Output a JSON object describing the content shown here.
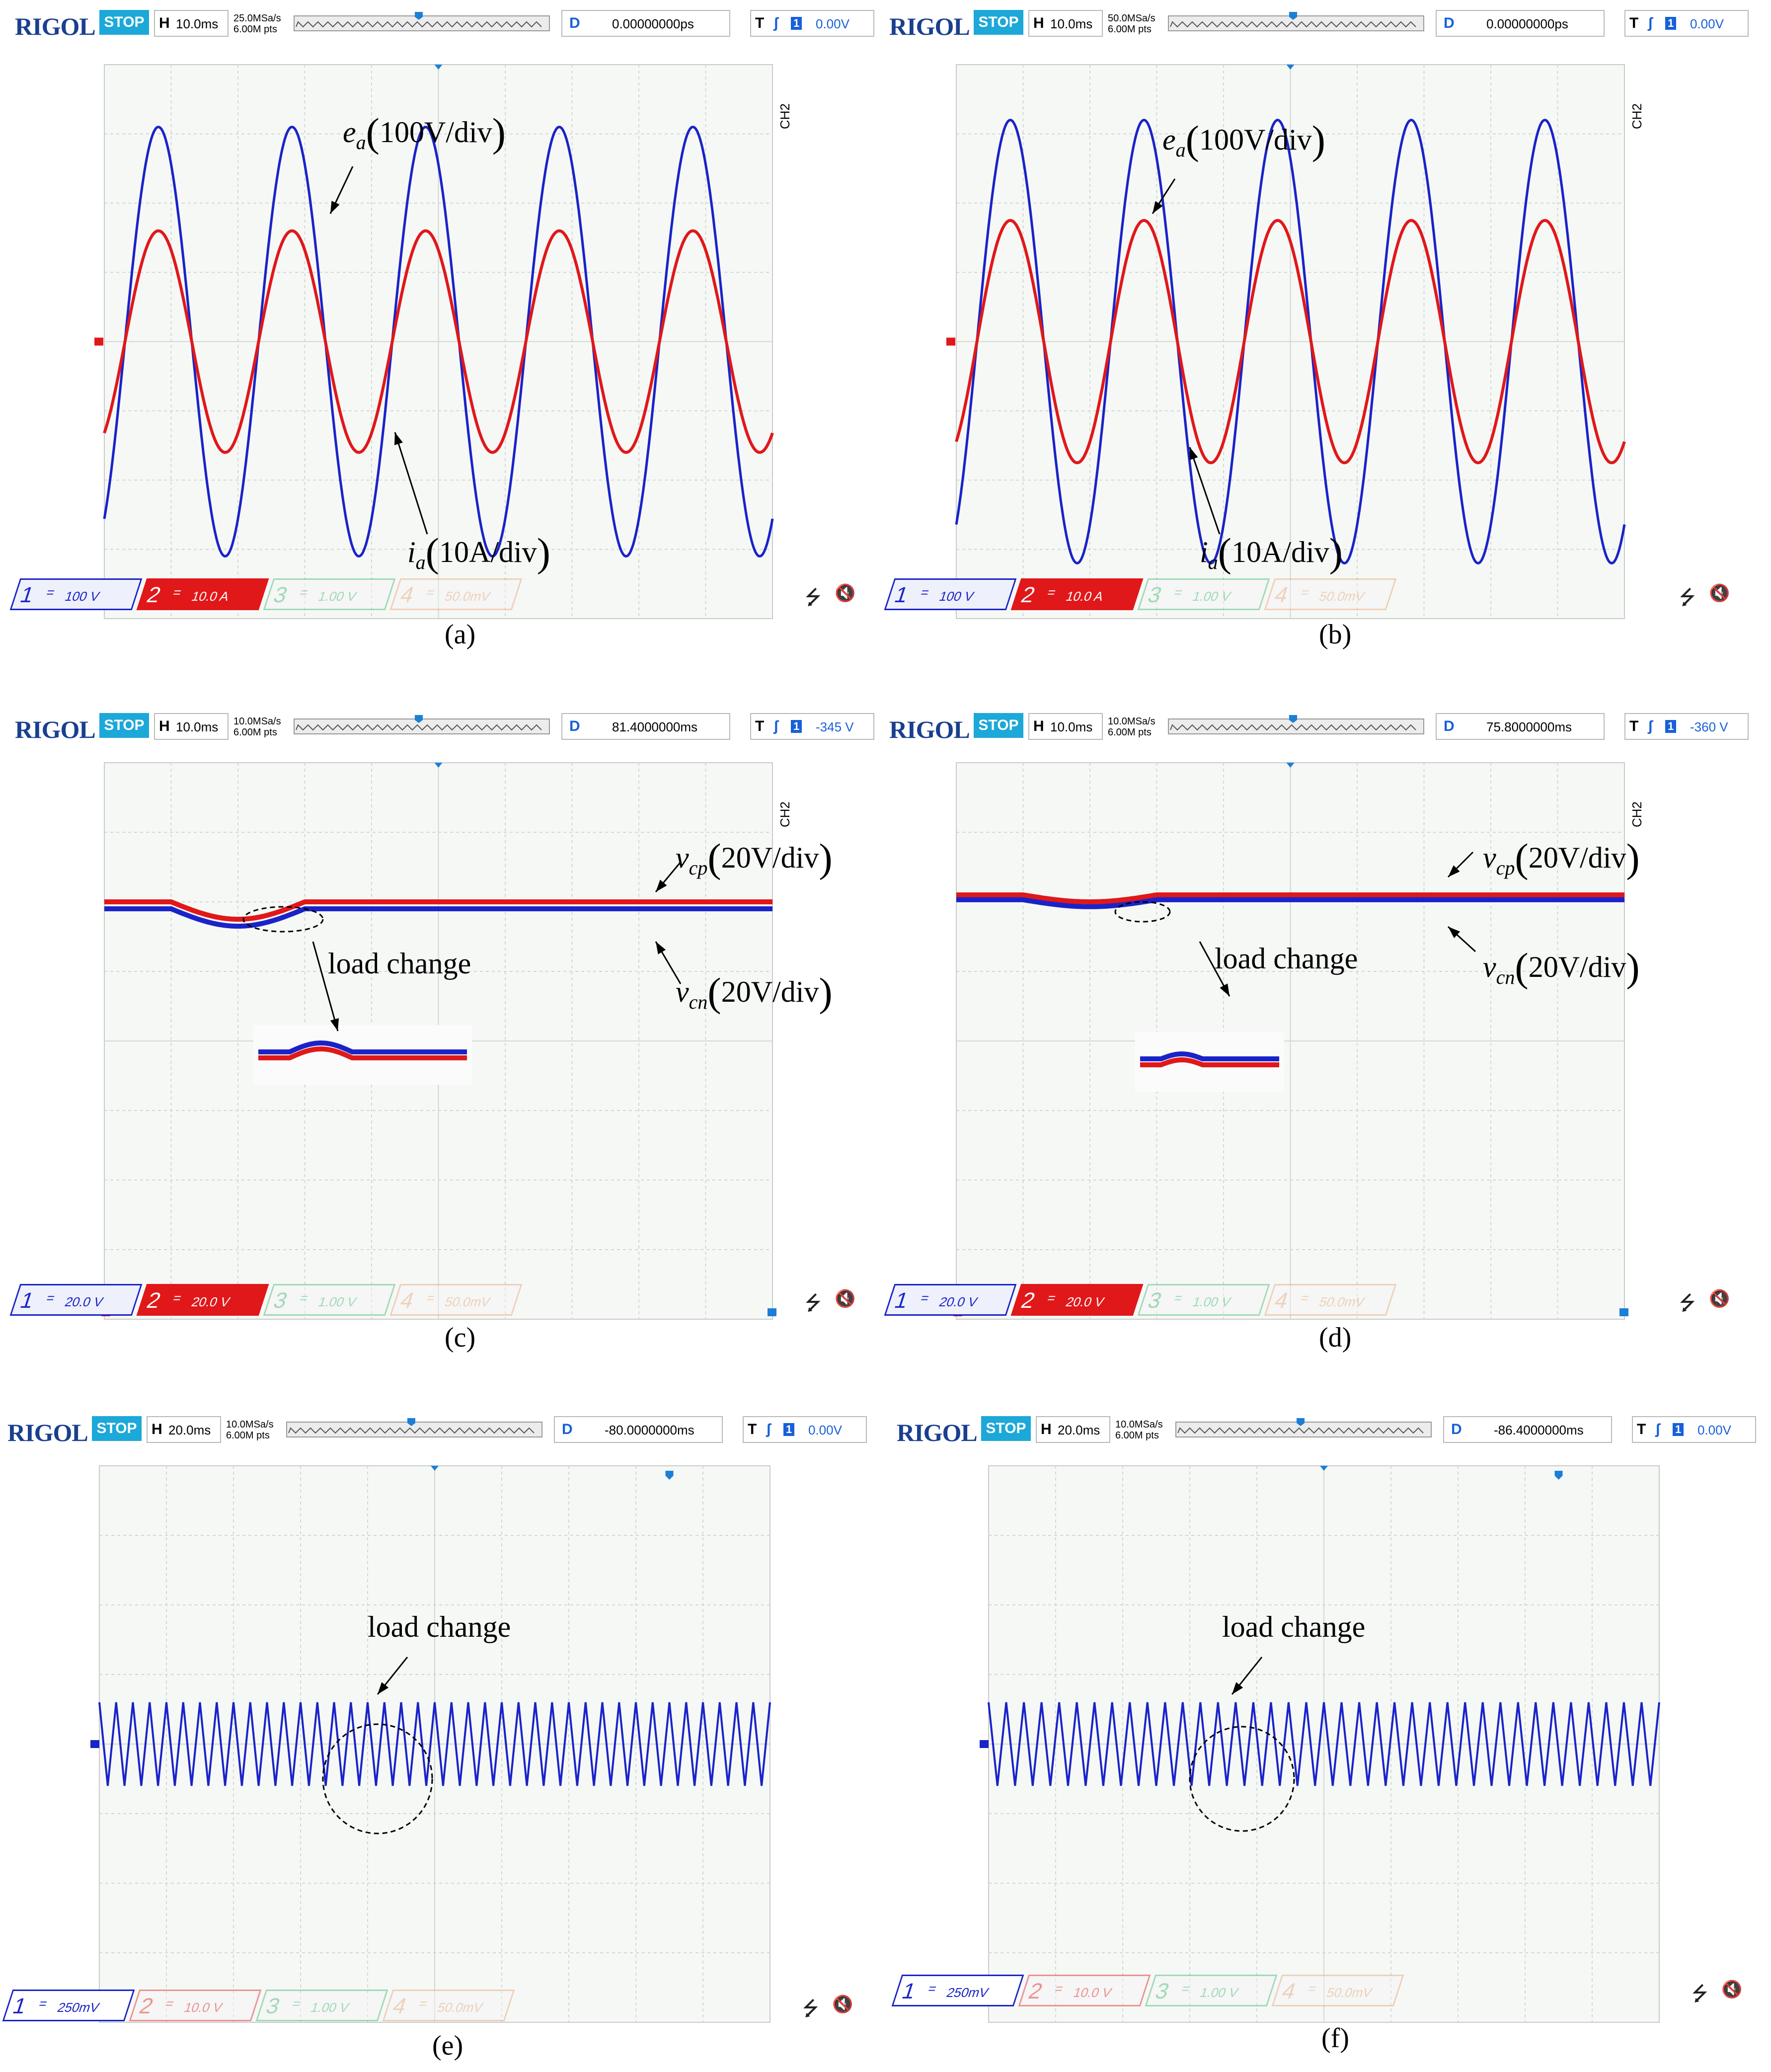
{
  "colors": {
    "blue": "#1a23c8",
    "red": "#e0181a",
    "brand": "#1a3f8f",
    "stop": "#1ca8d8",
    "ch3": "#3bb56b",
    "ch4": "#e6a070"
  },
  "panels": [
    {
      "id": "a",
      "caption": "(a)",
      "brand": "RIGOL",
      "stop": "STOP",
      "h_label": "H",
      "timebase": "10.0ms",
      "rate1": "25.0MSa/s",
      "rate2": "6.00M pts",
      "d_label": "D",
      "delay": "0.00000000ps",
      "trig_label": "T",
      "trig_ch": "1",
      "trig_level": "0.00V",
      "ch_side": "CH2",
      "channels": [
        {
          "num": "1",
          "scale": "100 V"
        },
        {
          "num": "2",
          "scale": "10.0 A"
        },
        {
          "num": "3",
          "scale": "1.00 V"
        },
        {
          "num": "4",
          "scale": "50.0mV"
        }
      ],
      "annotations": [
        {
          "sym": "e",
          "sub": "a",
          "unit": "100V/div"
        },
        {
          "sym": "i",
          "sub": "a",
          "unit": "10A/div"
        }
      ],
      "chart_data": {
        "type": "line",
        "x_unit": "ms",
        "x_range": [
          0,
          100
        ],
        "y_unit": "div",
        "y_range": [
          -4,
          4
        ],
        "grid": true,
        "series": [
          {
            "name": "e_a",
            "amplitude_div": 3.1,
            "frequency_hz": 50,
            "phase_deg": 0
          },
          {
            "name": "i_a",
            "amplitude_div": 1.6,
            "frequency_hz": 50,
            "phase_deg": 0
          }
        ]
      }
    },
    {
      "id": "b",
      "caption": "(b)",
      "brand": "RIGOL",
      "stop": "STOP",
      "h_label": "H",
      "timebase": "10.0ms",
      "rate1": "50.0MSa/s",
      "rate2": "6.00M pts",
      "d_label": "D",
      "delay": "0.00000000ps",
      "trig_label": "T",
      "trig_ch": "1",
      "trig_level": "0.00V",
      "ch_side": "CH2",
      "channels": [
        {
          "num": "1",
          "scale": "100 V"
        },
        {
          "num": "2",
          "scale": "10.0 A"
        },
        {
          "num": "3",
          "scale": "1.00 V"
        },
        {
          "num": "4",
          "scale": "50.0mV"
        }
      ],
      "annotations": [
        {
          "sym": "e",
          "sub": "a",
          "unit": "100V/div"
        },
        {
          "sym": "i",
          "sub": "a",
          "unit": "10A/div"
        }
      ],
      "chart_data": {
        "type": "line",
        "x_unit": "ms",
        "x_range": [
          0,
          100
        ],
        "y_unit": "div",
        "y_range": [
          -4,
          4
        ],
        "grid": true,
        "series": [
          {
            "name": "e_a",
            "amplitude_div": 3.2,
            "frequency_hz": 50,
            "phase_deg": 0
          },
          {
            "name": "i_a",
            "amplitude_div": 1.75,
            "frequency_hz": 50,
            "phase_deg": 0
          }
        ]
      }
    },
    {
      "id": "c",
      "caption": "(c)",
      "brand": "RIGOL",
      "stop": "STOP",
      "h_label": "H",
      "timebase": "10.0ms",
      "rate1": "10.0MSa/s",
      "rate2": "6.00M pts",
      "d_label": "D",
      "delay": "81.4000000ms",
      "trig_label": "T",
      "trig_ch": "1",
      "trig_level": "-345 V",
      "ch_side": "CH2",
      "channels": [
        {
          "num": "1",
          "scale": "20.0 V"
        },
        {
          "num": "2",
          "scale": "20.0 V"
        },
        {
          "num": "3",
          "scale": "1.00 V"
        },
        {
          "num": "4",
          "scale": "50.0mV"
        }
      ],
      "annotations": [
        {
          "sym": "v",
          "sub": "cp",
          "unit": "20V/div"
        },
        {
          "sym": "v",
          "sub": "cn",
          "unit": "20V/div"
        },
        {
          "text": "load change"
        }
      ],
      "chart_data": {
        "type": "line",
        "x_unit": "ms",
        "x_range": [
          0,
          100
        ],
        "y_unit": "div",
        "y_range": [
          -4,
          4
        ],
        "grid": true,
        "series": [
          {
            "name": "v_cp",
            "level_div": 2.0,
            "dip_div": 0.25
          },
          {
            "name": "v_cn",
            "level_div": 1.9,
            "dip_div": 0.25
          }
        ]
      }
    },
    {
      "id": "d",
      "caption": "(d)",
      "brand": "RIGOL",
      "stop": "STOP",
      "h_label": "H",
      "timebase": "10.0ms",
      "rate1": "10.0MSa/s",
      "rate2": "6.00M pts",
      "d_label": "D",
      "delay": "75.8000000ms",
      "trig_label": "T",
      "trig_ch": "1",
      "trig_level": "-360 V",
      "ch_side": "CH2",
      "channels": [
        {
          "num": "1",
          "scale": "20.0 V"
        },
        {
          "num": "2",
          "scale": "20.0 V"
        },
        {
          "num": "3",
          "scale": "1.00 V"
        },
        {
          "num": "4",
          "scale": "50.0mV"
        }
      ],
      "annotations": [
        {
          "sym": "v",
          "sub": "cp",
          "unit": "20V/div"
        },
        {
          "sym": "v",
          "sub": "cn",
          "unit": "20V/div"
        },
        {
          "text": "load change"
        }
      ],
      "chart_data": {
        "type": "line",
        "x_unit": "ms",
        "x_range": [
          0,
          100
        ],
        "y_unit": "div",
        "y_range": [
          -4,
          4
        ],
        "grid": true,
        "series": [
          {
            "name": "v_cp",
            "level_div": 2.1,
            "dip_div": 0.1
          },
          {
            "name": "v_cn",
            "level_div": 2.03,
            "dip_div": 0.1
          }
        ]
      }
    },
    {
      "id": "e",
      "caption": "(e)",
      "brand": "RIGOL",
      "stop": "STOP",
      "h_label": "H",
      "timebase": "20.0ms",
      "rate1": "10.0MSa/s",
      "rate2": "6.00M pts",
      "d_label": "D",
      "delay": "-80.0000000ms",
      "trig_label": "T",
      "trig_ch": "1",
      "trig_level": "0.00V",
      "ch_side": "",
      "channels": [
        {
          "num": "1",
          "scale": "250mV"
        },
        {
          "num": "2",
          "scale": "10.0 V"
        },
        {
          "num": "3",
          "scale": "1.00 V"
        },
        {
          "num": "4",
          "scale": "50.0mV"
        }
      ],
      "annotations": [
        {
          "text": "load change"
        }
      ],
      "chart_data": {
        "type": "line",
        "x_unit": "ms",
        "x_range": [
          0,
          200
        ],
        "y_unit": "div",
        "y_range": [
          -4,
          4
        ],
        "grid": true,
        "series": [
          {
            "name": "ch1",
            "amplitude_div": 0.6,
            "cycles": 40
          }
        ]
      }
    },
    {
      "id": "f",
      "caption": "(f)",
      "brand": "RIGOL",
      "stop": "STOP",
      "h_label": "H",
      "timebase": "20.0ms",
      "rate1": "10.0MSa/s",
      "rate2": "6.00M pts",
      "d_label": "D",
      "delay": "-86.4000000ms",
      "trig_label": "T",
      "trig_ch": "1",
      "trig_level": "0.00V",
      "ch_side": "",
      "channels": [
        {
          "num": "1",
          "scale": "250mV"
        },
        {
          "num": "2",
          "scale": "10.0 V"
        },
        {
          "num": "3",
          "scale": "1.00 V"
        },
        {
          "num": "4",
          "scale": "50.0mV"
        }
      ],
      "annotations": [
        {
          "text": "load change"
        }
      ],
      "chart_data": {
        "type": "line",
        "x_unit": "ms",
        "x_range": [
          0,
          200
        ],
        "y_unit": "div",
        "y_range": [
          -4,
          4
        ],
        "grid": true,
        "series": [
          {
            "name": "ch1",
            "amplitude_div": 0.6,
            "cycles": 38
          }
        ]
      }
    }
  ]
}
